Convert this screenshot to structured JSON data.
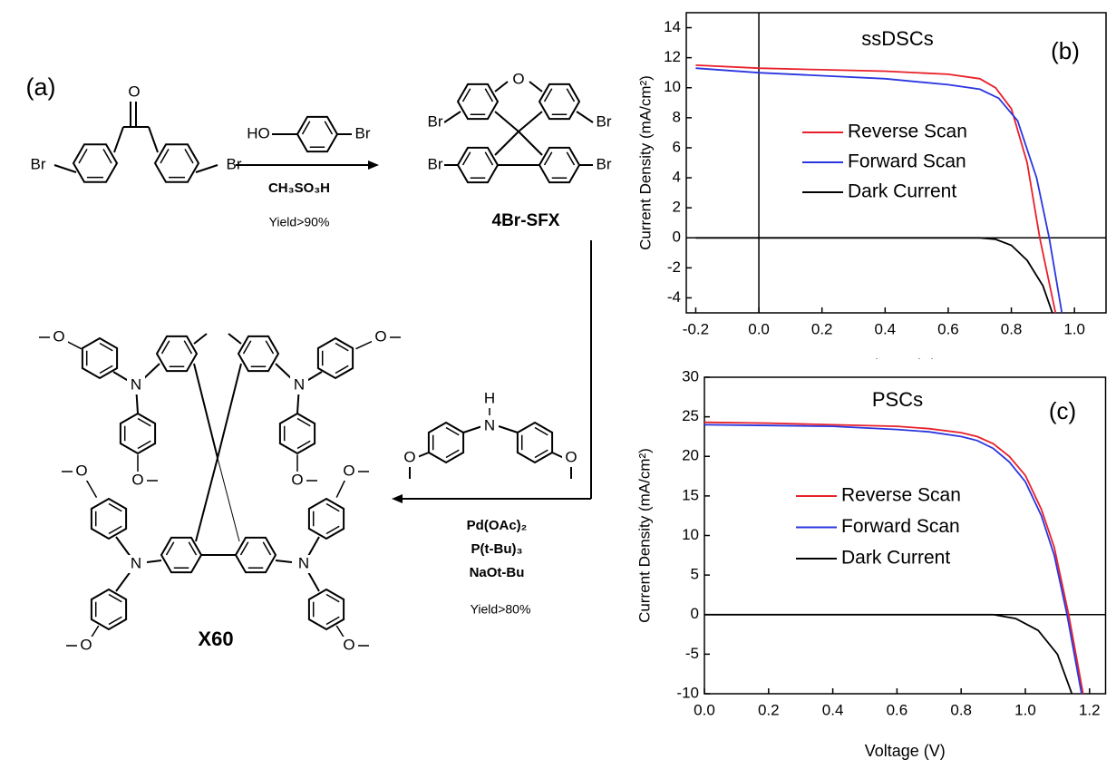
{
  "scheme": {
    "panel_label": "(a)",
    "atoms": {
      "br": "Br",
      "o": "O",
      "n": "N",
      "h": "H",
      "ho": "HO"
    },
    "reagent_1": "CH₃SO₃H",
    "yield_1": "Yield>90%",
    "product_1": "4Br-SFX",
    "reagents_2": [
      "Pd(OAc)₂",
      "P(t-Bu)₃",
      "NaOt-Bu"
    ],
    "yield_2": "Yield>80%",
    "product_2": "X60"
  },
  "chart_data": [
    {
      "type": "line",
      "panel_label": "(b)",
      "title": "ssDSCs",
      "title_color": "#e8202a",
      "xlabel": "Voltage (V)",
      "ylabel": "Current Density (mA/cm²)",
      "xlim": [
        -0.23,
        1.1
      ],
      "xticks": [
        -0.2,
        0.0,
        0.2,
        0.4,
        0.6,
        0.8,
        1.0
      ],
      "ylim": [
        -5,
        15
      ],
      "yticks": [
        -4,
        -2,
        0,
        2,
        4,
        6,
        8,
        10,
        12,
        14
      ],
      "hline": 0,
      "vline": 0,
      "series": [
        {
          "name": "Reverse Scan",
          "color": "#e8202a",
          "x": [
            -0.2,
            0,
            0.2,
            0.4,
            0.6,
            0.7,
            0.75,
            0.8,
            0.85,
            0.89,
            0.94
          ],
          "values": [
            11.5,
            11.3,
            11.2,
            11.1,
            10.9,
            10.6,
            10.0,
            8.6,
            5.0,
            0,
            -5
          ]
        },
        {
          "name": "Forward Scan",
          "color": "#2a35e0",
          "x": [
            -0.2,
            0,
            0.2,
            0.4,
            0.6,
            0.7,
            0.76,
            0.82,
            0.88,
            0.92,
            0.96
          ],
          "values": [
            11.3,
            11.0,
            10.8,
            10.6,
            10.2,
            9.9,
            9.3,
            7.8,
            4.0,
            0,
            -5
          ]
        },
        {
          "name": "Dark Current",
          "color": "#000000",
          "x": [
            -0.2,
            0.7,
            0.75,
            0.8,
            0.85,
            0.9,
            0.93
          ],
          "values": [
            0,
            0,
            -0.1,
            -0.5,
            -1.5,
            -3.2,
            -5
          ]
        }
      ]
    },
    {
      "type": "line",
      "panel_label": "(c)",
      "title": "PSCs",
      "title_color": "#000000",
      "xlabel": "Voltage (V)",
      "ylabel": "Current Density (mA/cm²)",
      "xlim": [
        0,
        1.25
      ],
      "xticks": [
        0.0,
        0.2,
        0.4,
        0.6,
        0.8,
        1.0,
        1.2
      ],
      "ylim": [
        -10,
        30
      ],
      "yticks": [
        -10,
        -5,
        0,
        5,
        10,
        15,
        20,
        25,
        30
      ],
      "hline": 0,
      "series": [
        {
          "name": "Reverse Scan",
          "color": "#e8202a",
          "x": [
            0,
            0.2,
            0.4,
            0.6,
            0.7,
            0.8,
            0.85,
            0.9,
            0.95,
            1.0,
            1.05,
            1.09,
            1.135,
            1.18
          ],
          "values": [
            24.3,
            24.2,
            24.0,
            23.8,
            23.5,
            23.0,
            22.5,
            21.6,
            20.0,
            17.6,
            13.3,
            8.5,
            0,
            -10
          ]
        },
        {
          "name": "Forward Scan",
          "color": "#2a35e0",
          "x": [
            0,
            0.2,
            0.4,
            0.6,
            0.7,
            0.8,
            0.85,
            0.9,
            0.95,
            1.0,
            1.05,
            1.09,
            1.13,
            1.175
          ],
          "values": [
            24.0,
            23.9,
            23.8,
            23.4,
            23.1,
            22.5,
            22.0,
            21.0,
            19.3,
            16.8,
            12.5,
            7.5,
            0,
            -10
          ]
        },
        {
          "name": "Dark Current",
          "color": "#000000",
          "x": [
            0,
            0.9,
            0.97,
            1.04,
            1.1,
            1.145
          ],
          "values": [
            0,
            0,
            -0.5,
            -2,
            -5,
            -10
          ]
        }
      ]
    }
  ]
}
